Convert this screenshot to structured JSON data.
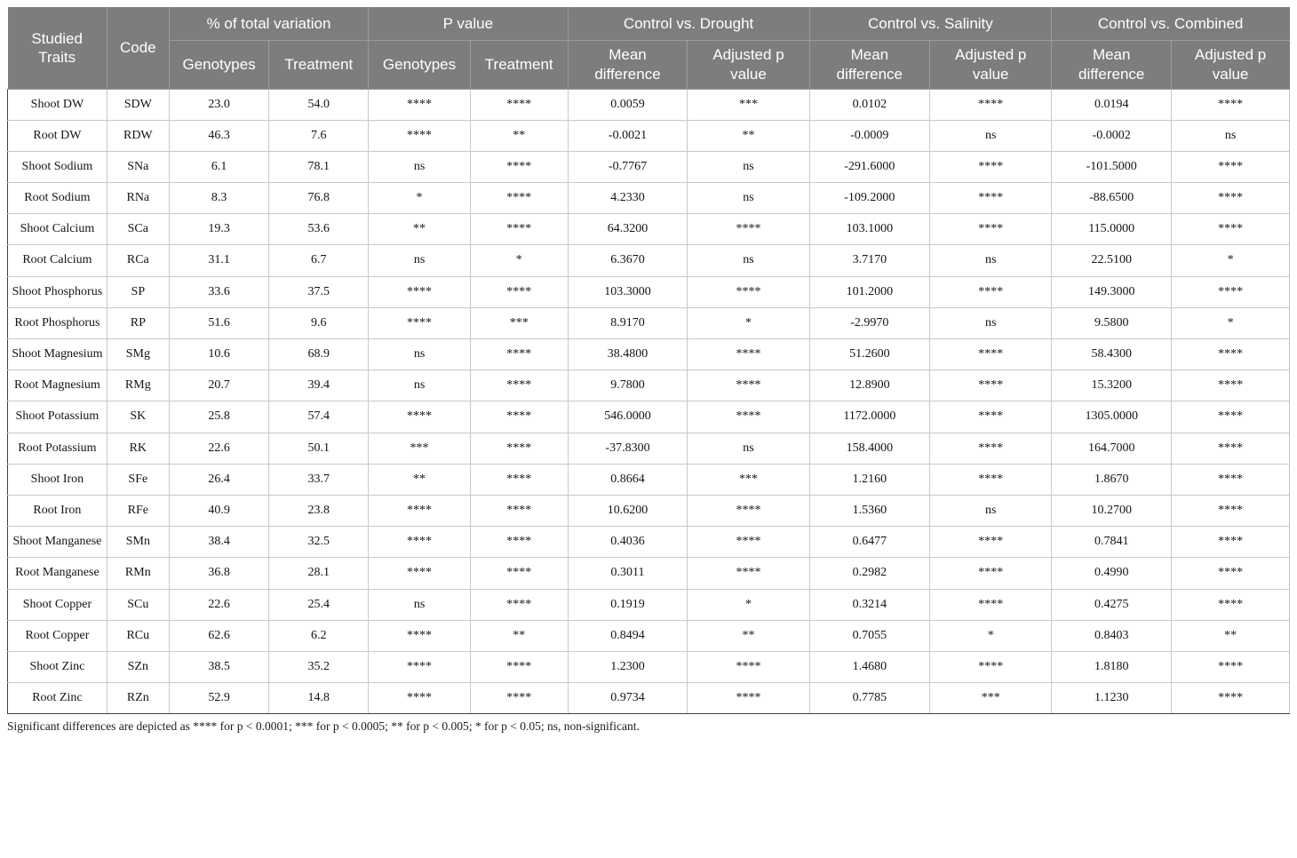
{
  "table": {
    "header": {
      "studied_traits": "Studied Traits",
      "code": "Code",
      "groups": [
        {
          "label": "% of total variation",
          "cols": [
            "Genotypes",
            "Treatment"
          ]
        },
        {
          "label": "P value",
          "cols": [
            "Genotypes",
            "Treatment"
          ]
        },
        {
          "label": "Control vs. Drought",
          "cols": [
            "Mean difference",
            "Adjusted p value"
          ]
        },
        {
          "label": "Control vs. Salinity",
          "cols": [
            "Mean difference",
            "Adjusted p value"
          ]
        },
        {
          "label": "Control vs. Combined",
          "cols": [
            "Mean difference",
            "Adjusted p value"
          ]
        }
      ]
    },
    "rows": [
      [
        "Shoot DW",
        "SDW",
        "23.0",
        "54.0",
        "****",
        "****",
        "0.0059",
        "***",
        "0.0102",
        "****",
        "0.0194",
        "****"
      ],
      [
        "Root DW",
        "RDW",
        "46.3",
        "7.6",
        "****",
        "**",
        "-0.0021",
        "**",
        "-0.0009",
        "ns",
        "-0.0002",
        "ns"
      ],
      [
        "Shoot Sodium",
        "SNa",
        "6.1",
        "78.1",
        "ns",
        "****",
        "-0.7767",
        "ns",
        "-291.6000",
        "****",
        "-101.5000",
        "****"
      ],
      [
        "Root Sodium",
        "RNa",
        "8.3",
        "76.8",
        "*",
        "****",
        "4.2330",
        "ns",
        "-109.2000",
        "****",
        "-88.6500",
        "****"
      ],
      [
        "Shoot Calcium",
        "SCa",
        "19.3",
        "53.6",
        "**",
        "****",
        "64.3200",
        "****",
        "103.1000",
        "****",
        "115.0000",
        "****"
      ],
      [
        "Root Calcium",
        "RCa",
        "31.1",
        "6.7",
        "ns",
        "*",
        "6.3670",
        "ns",
        "3.7170",
        "ns",
        "22.5100",
        "*"
      ],
      [
        "Shoot Phosphorus",
        "SP",
        "33.6",
        "37.5",
        "****",
        "****",
        "103.3000",
        "****",
        "101.2000",
        "****",
        "149.3000",
        "****"
      ],
      [
        "Root Phosphorus",
        "RP",
        "51.6",
        "9.6",
        "****",
        "***",
        "8.9170",
        "*",
        "-2.9970",
        "ns",
        "9.5800",
        "*"
      ],
      [
        "Shoot Magnesium",
        "SMg",
        "10.6",
        "68.9",
        "ns",
        "****",
        "38.4800",
        "****",
        "51.2600",
        "****",
        "58.4300",
        "****"
      ],
      [
        "Root Magnesium",
        "RMg",
        "20.7",
        "39.4",
        "ns",
        "****",
        "9.7800",
        "****",
        "12.8900",
        "****",
        "15.3200",
        "****"
      ],
      [
        "Shoot Potassium",
        "SK",
        "25.8",
        "57.4",
        "****",
        "****",
        "546.0000",
        "****",
        "1172.0000",
        "****",
        "1305.0000",
        "****"
      ],
      [
        "Root Potassium",
        "RK",
        "22.6",
        "50.1",
        "***",
        "****",
        "-37.8300",
        "ns",
        "158.4000",
        "****",
        "164.7000",
        "****"
      ],
      [
        "Shoot Iron",
        "SFe",
        "26.4",
        "33.7",
        "**",
        "****",
        "0.8664",
        "***",
        "1.2160",
        "****",
        "1.8670",
        "****"
      ],
      [
        "Root Iron",
        "RFe",
        "40.9",
        "23.8",
        "****",
        "****",
        "10.6200",
        "****",
        "1.5360",
        "ns",
        "10.2700",
        "****"
      ],
      [
        "Shoot Manganese",
        "SMn",
        "38.4",
        "32.5",
        "****",
        "****",
        "0.4036",
        "****",
        "0.6477",
        "****",
        "0.7841",
        "****"
      ],
      [
        "Root Manganese",
        "RMn",
        "36.8",
        "28.1",
        "****",
        "****",
        "0.3011",
        "****",
        "0.2982",
        "****",
        "0.4990",
        "****"
      ],
      [
        "Shoot Copper",
        "SCu",
        "22.6",
        "25.4",
        "ns",
        "****",
        "0.1919",
        "*",
        "0.3214",
        "****",
        "0.4275",
        "****"
      ],
      [
        "Root Copper",
        "RCu",
        "62.6",
        "6.2",
        "****",
        "**",
        "0.8494",
        "**",
        "0.7055",
        "*",
        "0.8403",
        "**"
      ],
      [
        "Shoot Zinc",
        "SZn",
        "38.5",
        "35.2",
        "****",
        "****",
        "1.2300",
        "****",
        "1.4680",
        "****",
        "1.8180",
        "****"
      ],
      [
        "Root Zinc",
        "RZn",
        "52.9",
        "14.8",
        "****",
        "****",
        "0.9734",
        "****",
        "0.7785",
        "***",
        "1.1230",
        "****"
      ]
    ],
    "footnote": "Significant differences are depicted as **** for p < 0.0001; *** for p < 0.0005; ** for p < 0.005; * for p < 0.05; ns, non-significant."
  },
  "colors": {
    "header_bg": "#7d7d7d",
    "header_text": "#ffffff",
    "header_line": "#9b9b9b",
    "grid_line": "#c9c9c9",
    "outer_border": "#3f3f3f",
    "body_text": "#141414"
  }
}
